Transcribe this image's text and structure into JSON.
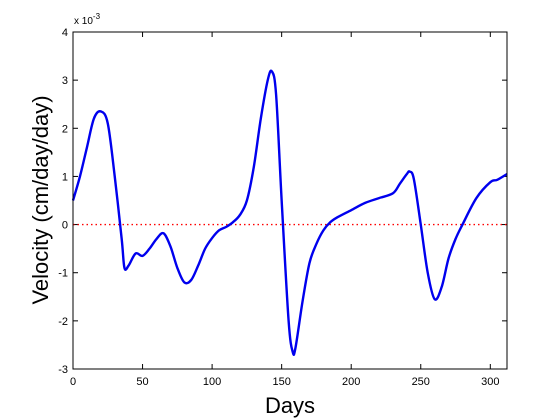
{
  "chart_data": {
    "type": "line",
    "xlabel": "Days",
    "ylabel": "Velocity (cm/day/day)",
    "y_multiplier_label": "x 10",
    "y_multiplier_exponent": "-3",
    "xlim": [
      0,
      312
    ],
    "ylim": [
      -3,
      4
    ],
    "x_ticks": [
      0,
      50,
      100,
      150,
      200,
      250,
      300
    ],
    "y_ticks": [
      -3,
      -2,
      -1,
      0,
      1,
      2,
      3,
      4
    ],
    "grid": false,
    "series": [
      {
        "color": "#0000ee",
        "style": "solid",
        "x": [
          0,
          5,
          10,
          15,
          20,
          25,
          30,
          35,
          37,
          40,
          45,
          50,
          55,
          60,
          65,
          70,
          75,
          80,
          85,
          90,
          95,
          100,
          105,
          110,
          115,
          120,
          125,
          130,
          135,
          140,
          143,
          146,
          150,
          155,
          158,
          160,
          165,
          170,
          175,
          180,
          185,
          190,
          200,
          210,
          220,
          230,
          235,
          240,
          242,
          245,
          250,
          255,
          260,
          265,
          270,
          275,
          280,
          290,
          300,
          305,
          312
        ],
        "y": [
          0.5,
          1.0,
          1.6,
          2.2,
          2.35,
          2.1,
          1.0,
          -0.3,
          -0.9,
          -0.85,
          -0.6,
          -0.65,
          -0.5,
          -0.3,
          -0.18,
          -0.45,
          -0.9,
          -1.2,
          -1.15,
          -0.85,
          -0.5,
          -0.28,
          -0.12,
          -0.05,
          0.05,
          0.2,
          0.5,
          1.2,
          2.2,
          3.0,
          3.18,
          2.7,
          0.5,
          -2.0,
          -2.65,
          -2.55,
          -1.6,
          -0.8,
          -0.4,
          -0.12,
          0.05,
          0.15,
          0.3,
          0.45,
          0.55,
          0.65,
          0.85,
          1.05,
          1.1,
          0.95,
          0.0,
          -1.0,
          -1.55,
          -1.3,
          -0.7,
          -0.3,
          0.0,
          0.55,
          0.88,
          0.93,
          1.05
        ]
      },
      {
        "color": "#ff0000",
        "style": "dotted",
        "x": [
          0,
          312
        ],
        "y": [
          0,
          0
        ]
      }
    ]
  }
}
